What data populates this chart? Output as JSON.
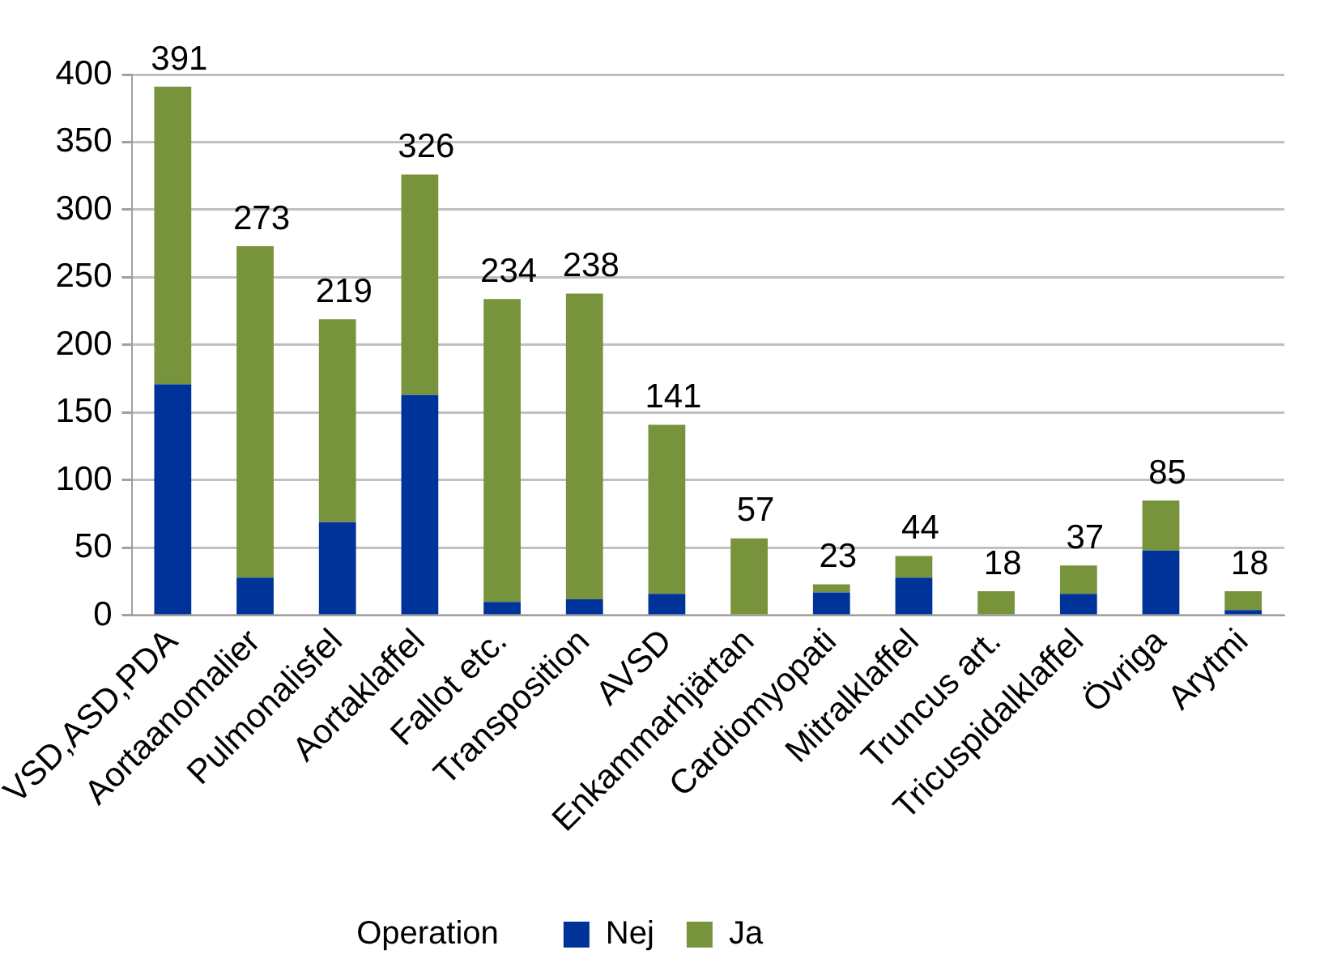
{
  "chart_data": {
    "type": "bar",
    "stacked": true,
    "categories": [
      "VSD,ASD,PDA",
      "Aortaanomalier",
      "Pulmonalisfel",
      "Aortaklaffel",
      "Fallot etc.",
      "Transposition",
      "AVSD",
      "Enkammarhjärtan",
      "Cardiomyopati",
      "Mitralklaffel",
      "Truncus art.",
      "Tricuspidalklaffel",
      "Övriga",
      "Arytmi"
    ],
    "series": [
      {
        "name": "Nej",
        "color": "#003399",
        "values": [
          171,
          28,
          69,
          163,
          10,
          12,
          16,
          0,
          17,
          28,
          0,
          16,
          48,
          4
        ]
      },
      {
        "name": "Ja",
        "color": "#77933c",
        "values": [
          220,
          245,
          150,
          163,
          224,
          226,
          125,
          57,
          6,
          16,
          18,
          21,
          37,
          14
        ]
      }
    ],
    "totals": [
      "391",
      "273",
      "219",
      "326",
      "234",
      "238",
      "141",
      "57",
      "23",
      "44",
      "18",
      "37",
      "85",
      "18"
    ],
    "ylim": [
      0,
      400
    ],
    "yticks": [
      0,
      50,
      100,
      150,
      200,
      250,
      300,
      350,
      400
    ],
    "grid": "y",
    "legend": "bottom",
    "legend_title": "Operation"
  }
}
